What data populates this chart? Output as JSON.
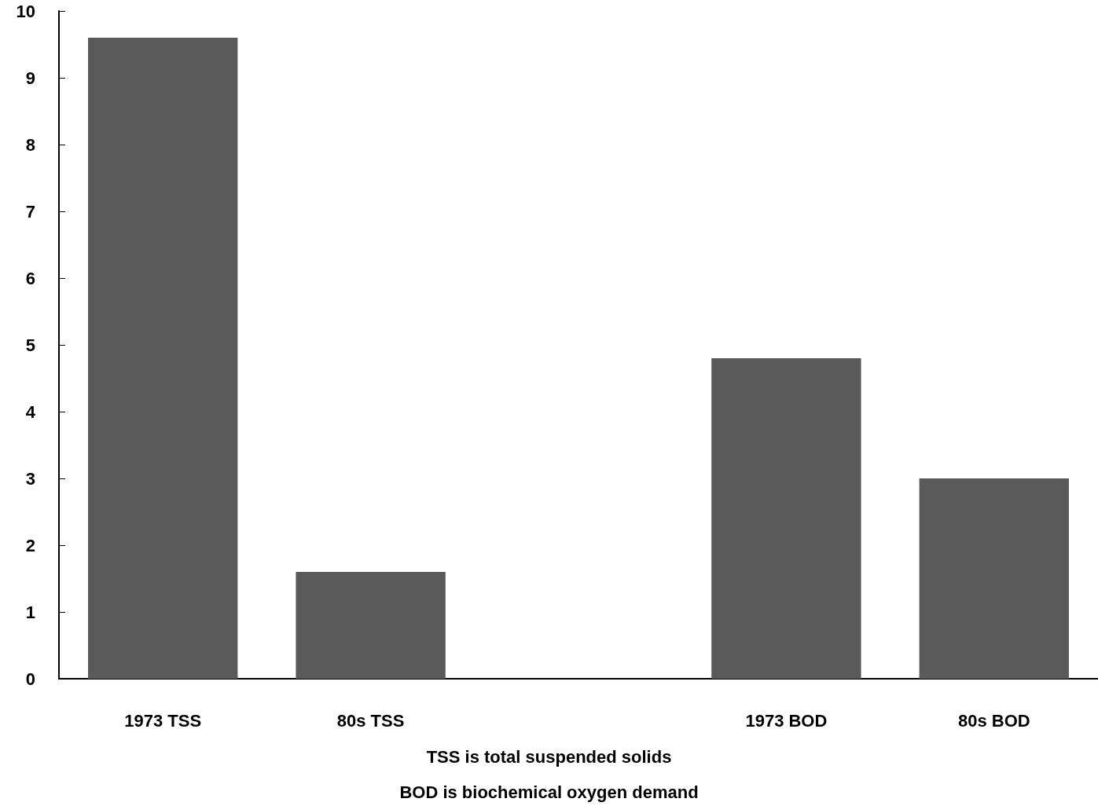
{
  "chart_data": {
    "type": "bar",
    "categories": [
      "1973 TSS",
      "80s TSS",
      null,
      "1973 BOD",
      "80s BOD"
    ],
    "values": [
      9.6,
      1.6,
      null,
      4.8,
      3.0
    ],
    "color": "#5a5a5a",
    "ylim": [
      0,
      10
    ],
    "yticks": [
      0,
      1,
      2,
      3,
      4,
      5,
      6,
      7,
      8,
      9,
      10
    ],
    "grid": false,
    "annotations": [
      "TSS is total suspended solids",
      "BOD is biochemical oxygen demand"
    ]
  }
}
